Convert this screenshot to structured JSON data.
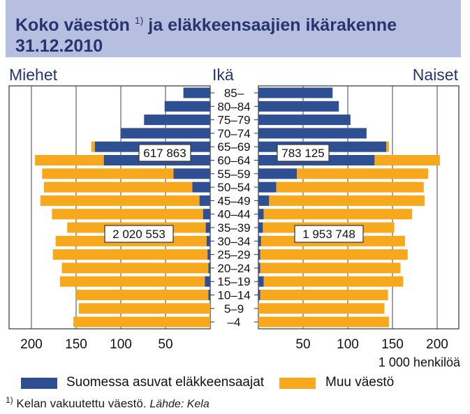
{
  "title": {
    "text": "Koko väestön",
    "sup": "1)",
    "text2": "ja eläkkeensaajien ikärakenne",
    "date": "31.12.2010"
  },
  "headers": {
    "left": "Miehet",
    "middle": "Ikä",
    "right": "Naiset"
  },
  "unit_label": "1 000 henkilöä",
  "legend": {
    "pension": "Suomessa asuvat eläkkeensaajat",
    "other": "Muu väestö"
  },
  "footnote": {
    "mark": "1)",
    "text": "Kelan vakuutettu väestö.",
    "source": "Lähde: Kela"
  },
  "colors": {
    "pension": "#2e4f92",
    "other": "#f7a81d",
    "title_bg": "#b7bfe0",
    "title_text": "#27356f"
  },
  "chart_data": {
    "type": "bar",
    "orientation": "horizontal-population-pyramid",
    "categories": [
      "85–",
      "80–84",
      "75–79",
      "70–74",
      "65–69",
      "60–64",
      "55–59",
      "50–54",
      "45–49",
      "40–44",
      "35–39",
      "30–34",
      "25–29",
      "20–24",
      "15–19",
      "10–14",
      "5–9",
      "–4"
    ],
    "men": {
      "pension": [
        30,
        51,
        74,
        100,
        129,
        119,
        41,
        20,
        12,
        8,
        5,
        4,
        3,
        2,
        6,
        2,
        0,
        0
      ],
      "total": [
        30,
        51,
        74,
        100,
        133,
        196,
        188,
        186,
        190,
        177,
        160,
        173,
        176,
        166,
        168,
        150,
        147,
        153
      ]
    },
    "women": {
      "pension": [
        83,
        90,
        103,
        121,
        143,
        130,
        43,
        20,
        12,
        6,
        5,
        3,
        2,
        2,
        6,
        2,
        0,
        0
      ],
      "total": [
        83,
        90,
        103,
        121,
        146,
        203,
        190,
        185,
        186,
        172,
        152,
        164,
        167,
        159,
        162,
        145,
        141,
        146
      ]
    },
    "annotations": [
      {
        "label": "617 863",
        "group": "men-pension-65plus"
      },
      {
        "label": "783 125",
        "group": "women-pension-65plus"
      },
      {
        "label": "2 020 553",
        "group": "men-other-under65"
      },
      {
        "label": "1 953 748",
        "group": "women-other-under65"
      }
    ],
    "x_ticks_left": [
      "200",
      "150",
      "100",
      "50"
    ],
    "x_ticks_right": [
      "50",
      "100",
      "150",
      "200"
    ],
    "xlim": [
      0,
      210
    ],
    "grid": true
  }
}
